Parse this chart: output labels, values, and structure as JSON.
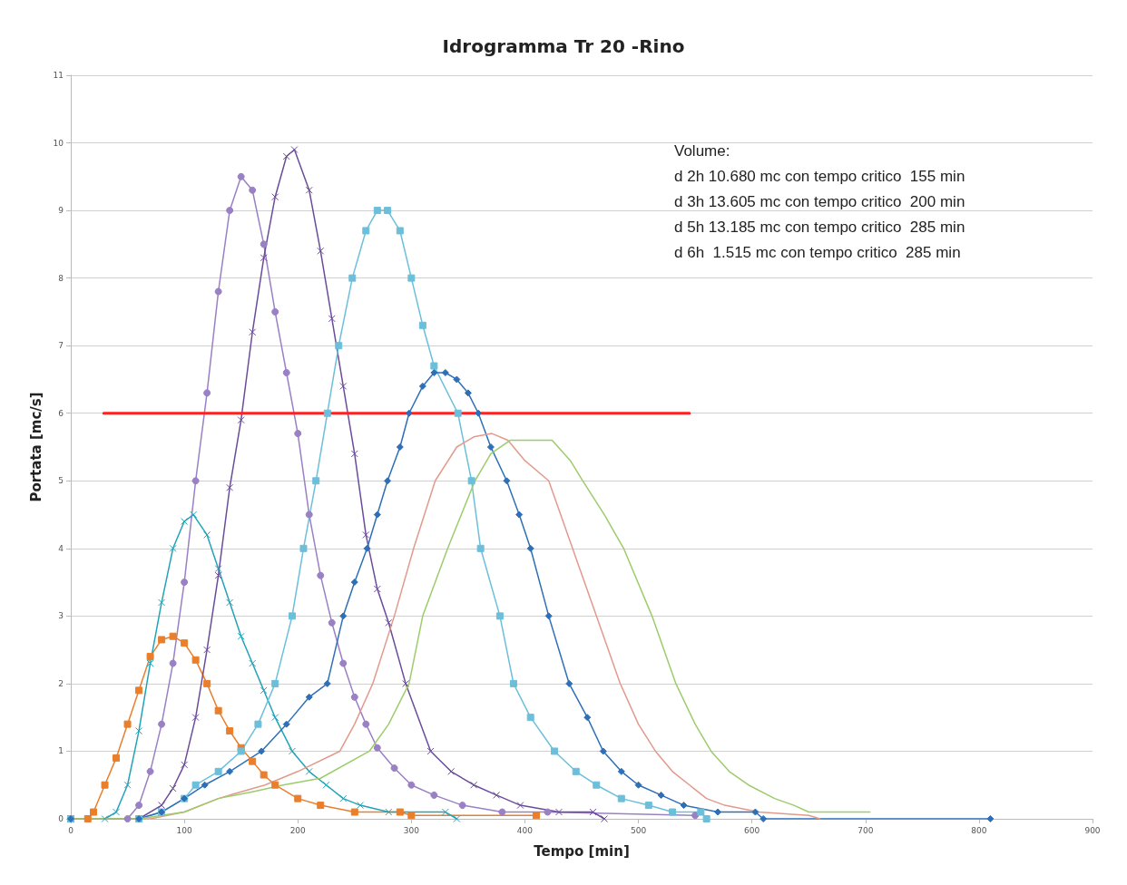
{
  "chart_data": {
    "type": "line",
    "title": "Idrogramma Tr 20 -Rino",
    "xlabel": "Tempo [min]",
    "ylabel": "Portata [mc/s]",
    "xlim": [
      0,
      900
    ],
    "xticks": [
      0,
      100,
      200,
      300,
      400,
      500,
      600,
      700,
      800,
      900
    ],
    "ylim": [
      0,
      11
    ],
    "yticks": [
      0,
      1,
      2,
      3,
      4,
      5,
      6,
      7,
      8,
      9,
      10,
      11
    ],
    "grid": "y",
    "line_style": "solid",
    "annotations": [
      "Volume:",
      "d 2h 10.680 mc con tempo critico  155 min",
      "d 3h 13.605 mc con tempo critico  200 min",
      "d 5h 13.185 mc con tempo critico  285 min",
      "d 6h  1.515 mc con tempo critico  285 min"
    ],
    "series": [
      {
        "color": "#e97f2c",
        "marker": "square",
        "x": [
          0,
          15,
          20,
          30,
          40,
          50,
          60,
          70,
          80,
          90,
          100,
          110,
          120,
          130,
          140,
          150,
          160,
          170,
          180,
          200,
          220,
          250,
          290,
          300,
          410
        ],
        "values": [
          0,
          0,
          0.1,
          0.5,
          0.9,
          1.4,
          1.9,
          2.4,
          2.65,
          2.7,
          2.6,
          2.35,
          2.0,
          1.6,
          1.3,
          1.05,
          0.85,
          0.65,
          0.5,
          0.3,
          0.2,
          0.1,
          0.1,
          0.05,
          0.05
        ]
      },
      {
        "color": "#23a3b8",
        "marker": "cross",
        "x": [
          0,
          30,
          40,
          50,
          60,
          70,
          80,
          90,
          100,
          108,
          120,
          130,
          140,
          150,
          160,
          170,
          180,
          195,
          210,
          225,
          240,
          255,
          280,
          330,
          340
        ],
        "values": [
          0,
          0,
          0.1,
          0.5,
          1.3,
          2.3,
          3.2,
          4.0,
          4.4,
          4.5,
          4.2,
          3.7,
          3.2,
          2.7,
          2.3,
          1.9,
          1.5,
          1.0,
          0.7,
          0.5,
          0.3,
          0.2,
          0.1,
          0.1,
          0
        ]
      },
      {
        "color": "#9a80c4",
        "marker": "circle",
        "x": [
          0,
          50,
          60,
          70,
          80,
          90,
          100,
          110,
          120,
          130,
          140,
          150,
          160,
          170,
          180,
          190,
          200,
          210,
          220,
          230,
          240,
          250,
          260,
          270,
          285,
          300,
          320,
          345,
          380,
          420,
          550
        ],
        "values": [
          0,
          0,
          0.2,
          0.7,
          1.4,
          2.3,
          3.5,
          5.0,
          6.3,
          7.8,
          9.0,
          9.5,
          9.3,
          8.5,
          7.5,
          6.6,
          5.7,
          4.5,
          3.6,
          2.9,
          2.3,
          1.8,
          1.4,
          1.05,
          0.75,
          0.5,
          0.35,
          0.2,
          0.1,
          0.1,
          0.05
        ]
      },
      {
        "color": "#6b4c9a",
        "marker": "cross",
        "x": [
          0,
          60,
          80,
          90,
          100,
          110,
          120,
          130,
          140,
          150,
          160,
          170,
          180,
          190,
          197,
          210,
          220,
          230,
          240,
          250,
          260,
          270,
          280,
          295,
          317,
          335,
          355,
          375,
          396,
          430,
          460,
          470
        ],
        "values": [
          0,
          0,
          0.2,
          0.45,
          0.8,
          1.5,
          2.5,
          3.6,
          4.9,
          5.9,
          7.2,
          8.3,
          9.2,
          9.8,
          9.9,
          9.3,
          8.4,
          7.4,
          6.4,
          5.4,
          4.2,
          3.4,
          2.9,
          2.0,
          1.0,
          0.7,
          0.5,
          0.35,
          0.2,
          0.1,
          0.1,
          0
        ]
      },
      {
        "color": "#6cbfda",
        "marker": "square",
        "x": [
          0,
          60,
          80,
          100,
          110,
          130,
          150,
          165,
          180,
          195,
          205,
          216,
          226,
          236,
          248,
          260,
          270,
          279,
          290,
          300,
          310,
          320,
          341,
          353,
          361,
          378,
          390,
          405,
          426,
          445,
          463,
          485,
          509,
          530,
          555,
          560
        ],
        "values": [
          0,
          0,
          0.1,
          0.3,
          0.5,
          0.7,
          1.0,
          1.4,
          2.0,
          3.0,
          4.0,
          5.0,
          6.0,
          7.0,
          8.0,
          8.7,
          9.0,
          9.0,
          8.7,
          8.0,
          7.3,
          6.7,
          6.0,
          5.0,
          4.0,
          3.0,
          2.0,
          1.5,
          1.0,
          0.7,
          0.5,
          0.3,
          0.2,
          0.1,
          0.1,
          0
        ]
      },
      {
        "color": "#2e6fb8",
        "marker": "diamond",
        "x": [
          0,
          60,
          80,
          100,
          118,
          140,
          168,
          190,
          210,
          226,
          240,
          250,
          261,
          270,
          279,
          290,
          298,
          310,
          320,
          330,
          340,
          350,
          359,
          370,
          384,
          395,
          405,
          421,
          439,
          455,
          469,
          485,
          500,
          520,
          540,
          570,
          603,
          610,
          810
        ],
        "values": [
          0,
          0,
          0.1,
          0.3,
          0.5,
          0.7,
          1.0,
          1.4,
          1.8,
          2.0,
          3.0,
          3.5,
          4.0,
          4.5,
          5.0,
          5.5,
          6.0,
          6.4,
          6.6,
          6.6,
          6.5,
          6.3,
          6.0,
          5.5,
          5.0,
          4.5,
          4.0,
          3.0,
          2.0,
          1.5,
          1.0,
          0.7,
          0.5,
          0.35,
          0.2,
          0.1,
          0.1,
          0,
          0
        ]
      },
      {
        "color": "#e29a8c",
        "marker": "none",
        "x": [
          0,
          70,
          100,
          130,
          150,
          171,
          200,
          237,
          250,
          266,
          285,
          302,
          321,
          340,
          355,
          371,
          385,
          400,
          421,
          442,
          463,
          484,
          500,
          515,
          530,
          545,
          560,
          576,
          606,
          650,
          660
        ],
        "values": [
          0,
          0,
          0.1,
          0.3,
          0.4,
          0.5,
          0.7,
          1.0,
          1.4,
          2.0,
          3.0,
          4.0,
          5.0,
          5.5,
          5.65,
          5.7,
          5.6,
          5.3,
          5.0,
          4.0,
          3.0,
          2.0,
          1.4,
          1.0,
          0.7,
          0.5,
          0.3,
          0.2,
          0.1,
          0.05,
          0
        ]
      },
      {
        "color": "#9ccc6b",
        "marker": "none",
        "x": [
          0,
          60,
          100,
          130,
          160,
          187,
          220,
          263,
          280,
          298,
          310,
          332,
          356,
          370,
          387,
          424,
          440,
          451,
          470,
          487,
          512,
          533,
          550,
          564,
          580,
          597,
          620,
          637,
          650,
          704
        ],
        "values": [
          0,
          0,
          0.1,
          0.3,
          0.4,
          0.5,
          0.6,
          1.0,
          1.4,
          2.0,
          3.0,
          4.0,
          5.0,
          5.4,
          5.6,
          5.6,
          5.3,
          5.0,
          4.5,
          4.0,
          3.0,
          2.0,
          1.4,
          1.0,
          0.7,
          0.5,
          0.3,
          0.2,
          0.1,
          0.1
        ]
      },
      {
        "color": "#ff2020",
        "marker": "none",
        "x": [
          29,
          545
        ],
        "values": [
          6,
          6
        ]
      }
    ]
  }
}
